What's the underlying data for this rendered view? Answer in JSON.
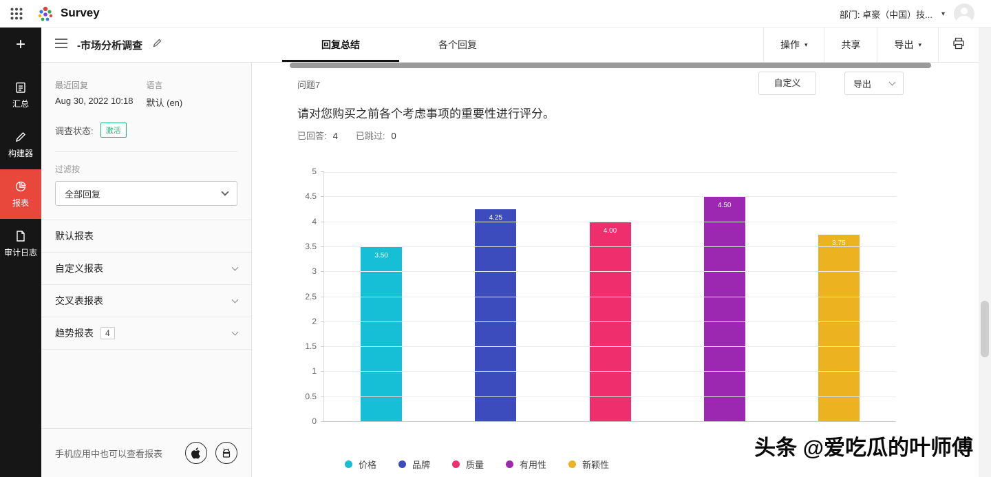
{
  "topbar": {
    "brand": "Survey",
    "department": "部门: 卓豪（中国）技..."
  },
  "toolbar": {
    "title": "-市场分析调查",
    "tabs": [
      {
        "label": "回复总结",
        "active": true
      },
      {
        "label": "各个回复",
        "active": false
      }
    ],
    "operate_label": "操作",
    "share_label": "共享",
    "export_label": "导出"
  },
  "sidebar": {
    "items": [
      {
        "label": "汇总"
      },
      {
        "label": "构建器"
      },
      {
        "label": "报表",
        "active": true
      },
      {
        "label": "审计日志"
      }
    ]
  },
  "panel": {
    "recent_label": "最近回复",
    "recent_value": "Aug 30, 2022 10:18",
    "language_label": "语言",
    "language_value": "默认 (en)",
    "status_label": "调查状态:",
    "status_value": "激活",
    "filter_label": "过滤按",
    "filter_value": "全部回复",
    "reports": [
      {
        "label": "默认报表"
      },
      {
        "label": "自定义报表"
      },
      {
        "label": "交叉表报表"
      },
      {
        "label": "趋势报表",
        "count": "4"
      }
    ],
    "mobile_note": "手机应用中也可以查看报表"
  },
  "main": {
    "question_no": "问题7",
    "customize_button": "自定义",
    "export_button": "导出",
    "question_title": "请对您购买之前各个考虑事项的重要性进行评分。",
    "answered_label": "已回答:",
    "answered_value": "4",
    "skipped_label": "已跳过:",
    "skipped_value": "0"
  },
  "chart_data": {
    "type": "bar",
    "title": "请对您购买之前各个考虑事项的重要性进行评分。",
    "categories": [
      "价格",
      "品牌",
      "质量",
      "有用性",
      "新颖性"
    ],
    "values": [
      3.5,
      4.25,
      4.0,
      4.5,
      3.75
    ],
    "value_labels": [
      "3.50",
      "4.25",
      "4.00",
      "4.50",
      "3.75"
    ],
    "colors": [
      "#16bed6",
      "#3c4cbc",
      "#ef2e6d",
      "#9c27b0",
      "#edb220"
    ],
    "xlabel": "",
    "ylabel": "",
    "ylim": [
      0,
      5
    ],
    "ytick_step": 0.5,
    "grid": true,
    "legend_position": "bottom"
  },
  "watermark": "头条 @爱吃瓜的叶师傅"
}
